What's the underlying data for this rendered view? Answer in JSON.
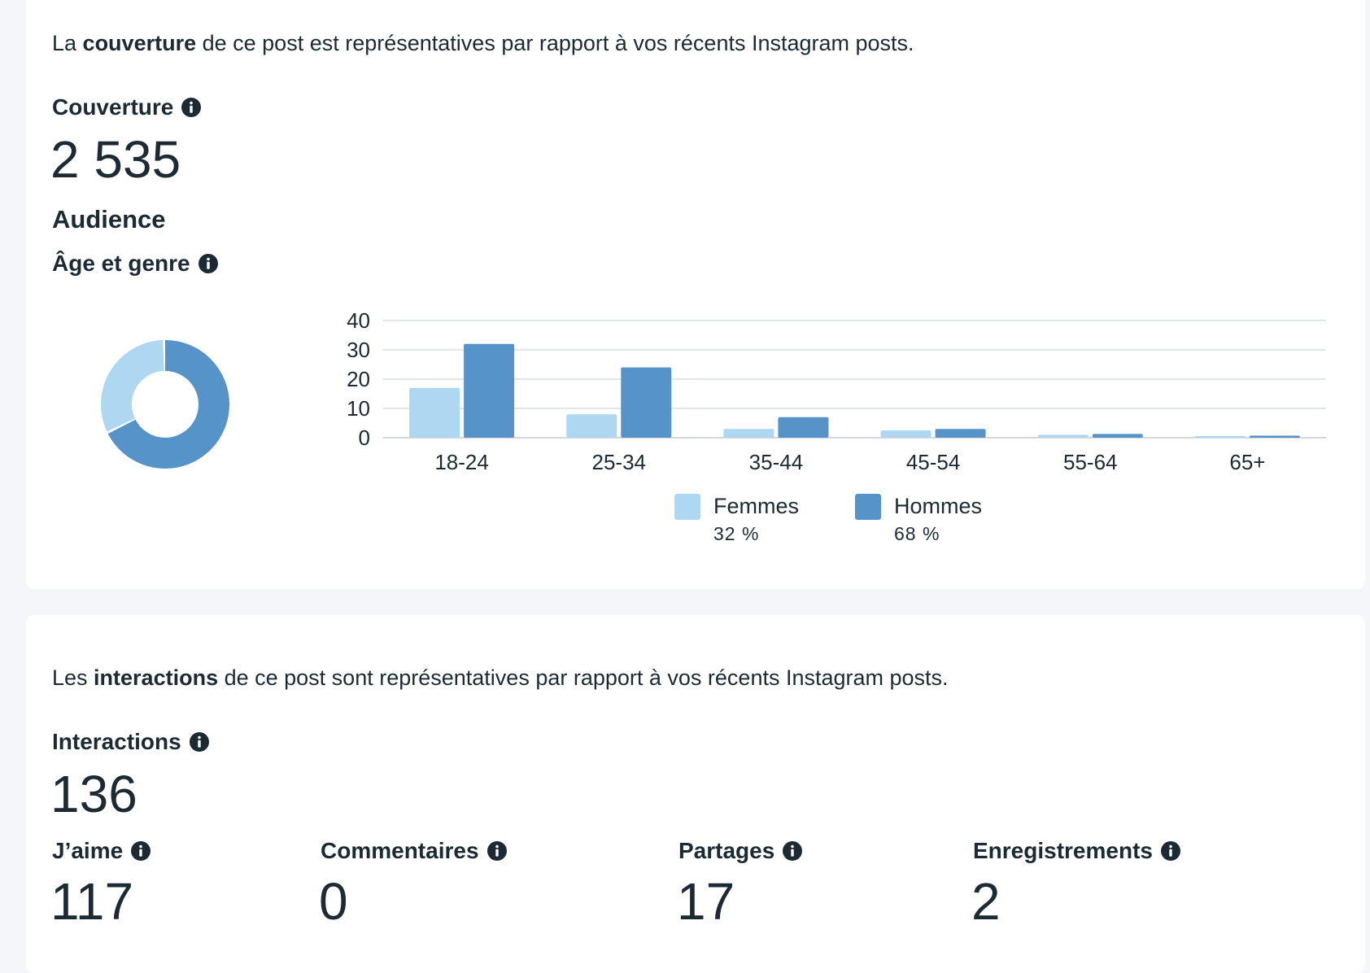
{
  "reach_card": {
    "intro_prefix": "La ",
    "intro_bold": "couverture",
    "intro_suffix": " de ce post est représentatives par rapport à vos récents Instagram posts.",
    "reach_label": "Couverture",
    "reach_value": "2 535",
    "audience_title": "Audience",
    "age_gender_label": "Âge et genre"
  },
  "legend": {
    "women_label": "Femmes",
    "women_pct": "32 %",
    "men_label": "Hommes",
    "men_pct": "68 %"
  },
  "colors": {
    "women": "#aed8f2",
    "men": "#5593c9",
    "grid": "#d9dde2",
    "text": "#1c2b33"
  },
  "chart_data": [
    {
      "type": "pie",
      "variant": "donut",
      "categories": [
        "Hommes",
        "Femmes"
      ],
      "values": [
        68,
        32
      ]
    },
    {
      "type": "bar",
      "categories": [
        "18-24",
        "25-34",
        "35-44",
        "45-54",
        "55-64",
        "65+"
      ],
      "series": [
        {
          "name": "Femmes",
          "values": [
            17,
            8,
            3,
            2.5,
            1,
            0.6
          ]
        },
        {
          "name": "Hommes",
          "values": [
            32,
            24,
            7,
            3,
            1.3,
            0.7
          ]
        }
      ],
      "yticks": [
        0,
        10,
        20,
        30,
        40
      ],
      "ylim": [
        0,
        40
      ],
      "grid": true,
      "legend": "bottom"
    }
  ],
  "interactions_card": {
    "intro_prefix": "Les ",
    "intro_bold": "interactions",
    "intro_suffix": " de ce post sont représentatives par rapport à vos récents Instagram posts.",
    "interactions_label": "Interactions",
    "interactions_value": "136",
    "metrics": [
      {
        "label": "J’aime",
        "value": "117"
      },
      {
        "label": "Commentaires",
        "value": "0"
      },
      {
        "label": "Partages",
        "value": "17"
      },
      {
        "label": "Enregistrements",
        "value": "2"
      }
    ]
  },
  "icons": {
    "info": "info-circle-icon"
  }
}
